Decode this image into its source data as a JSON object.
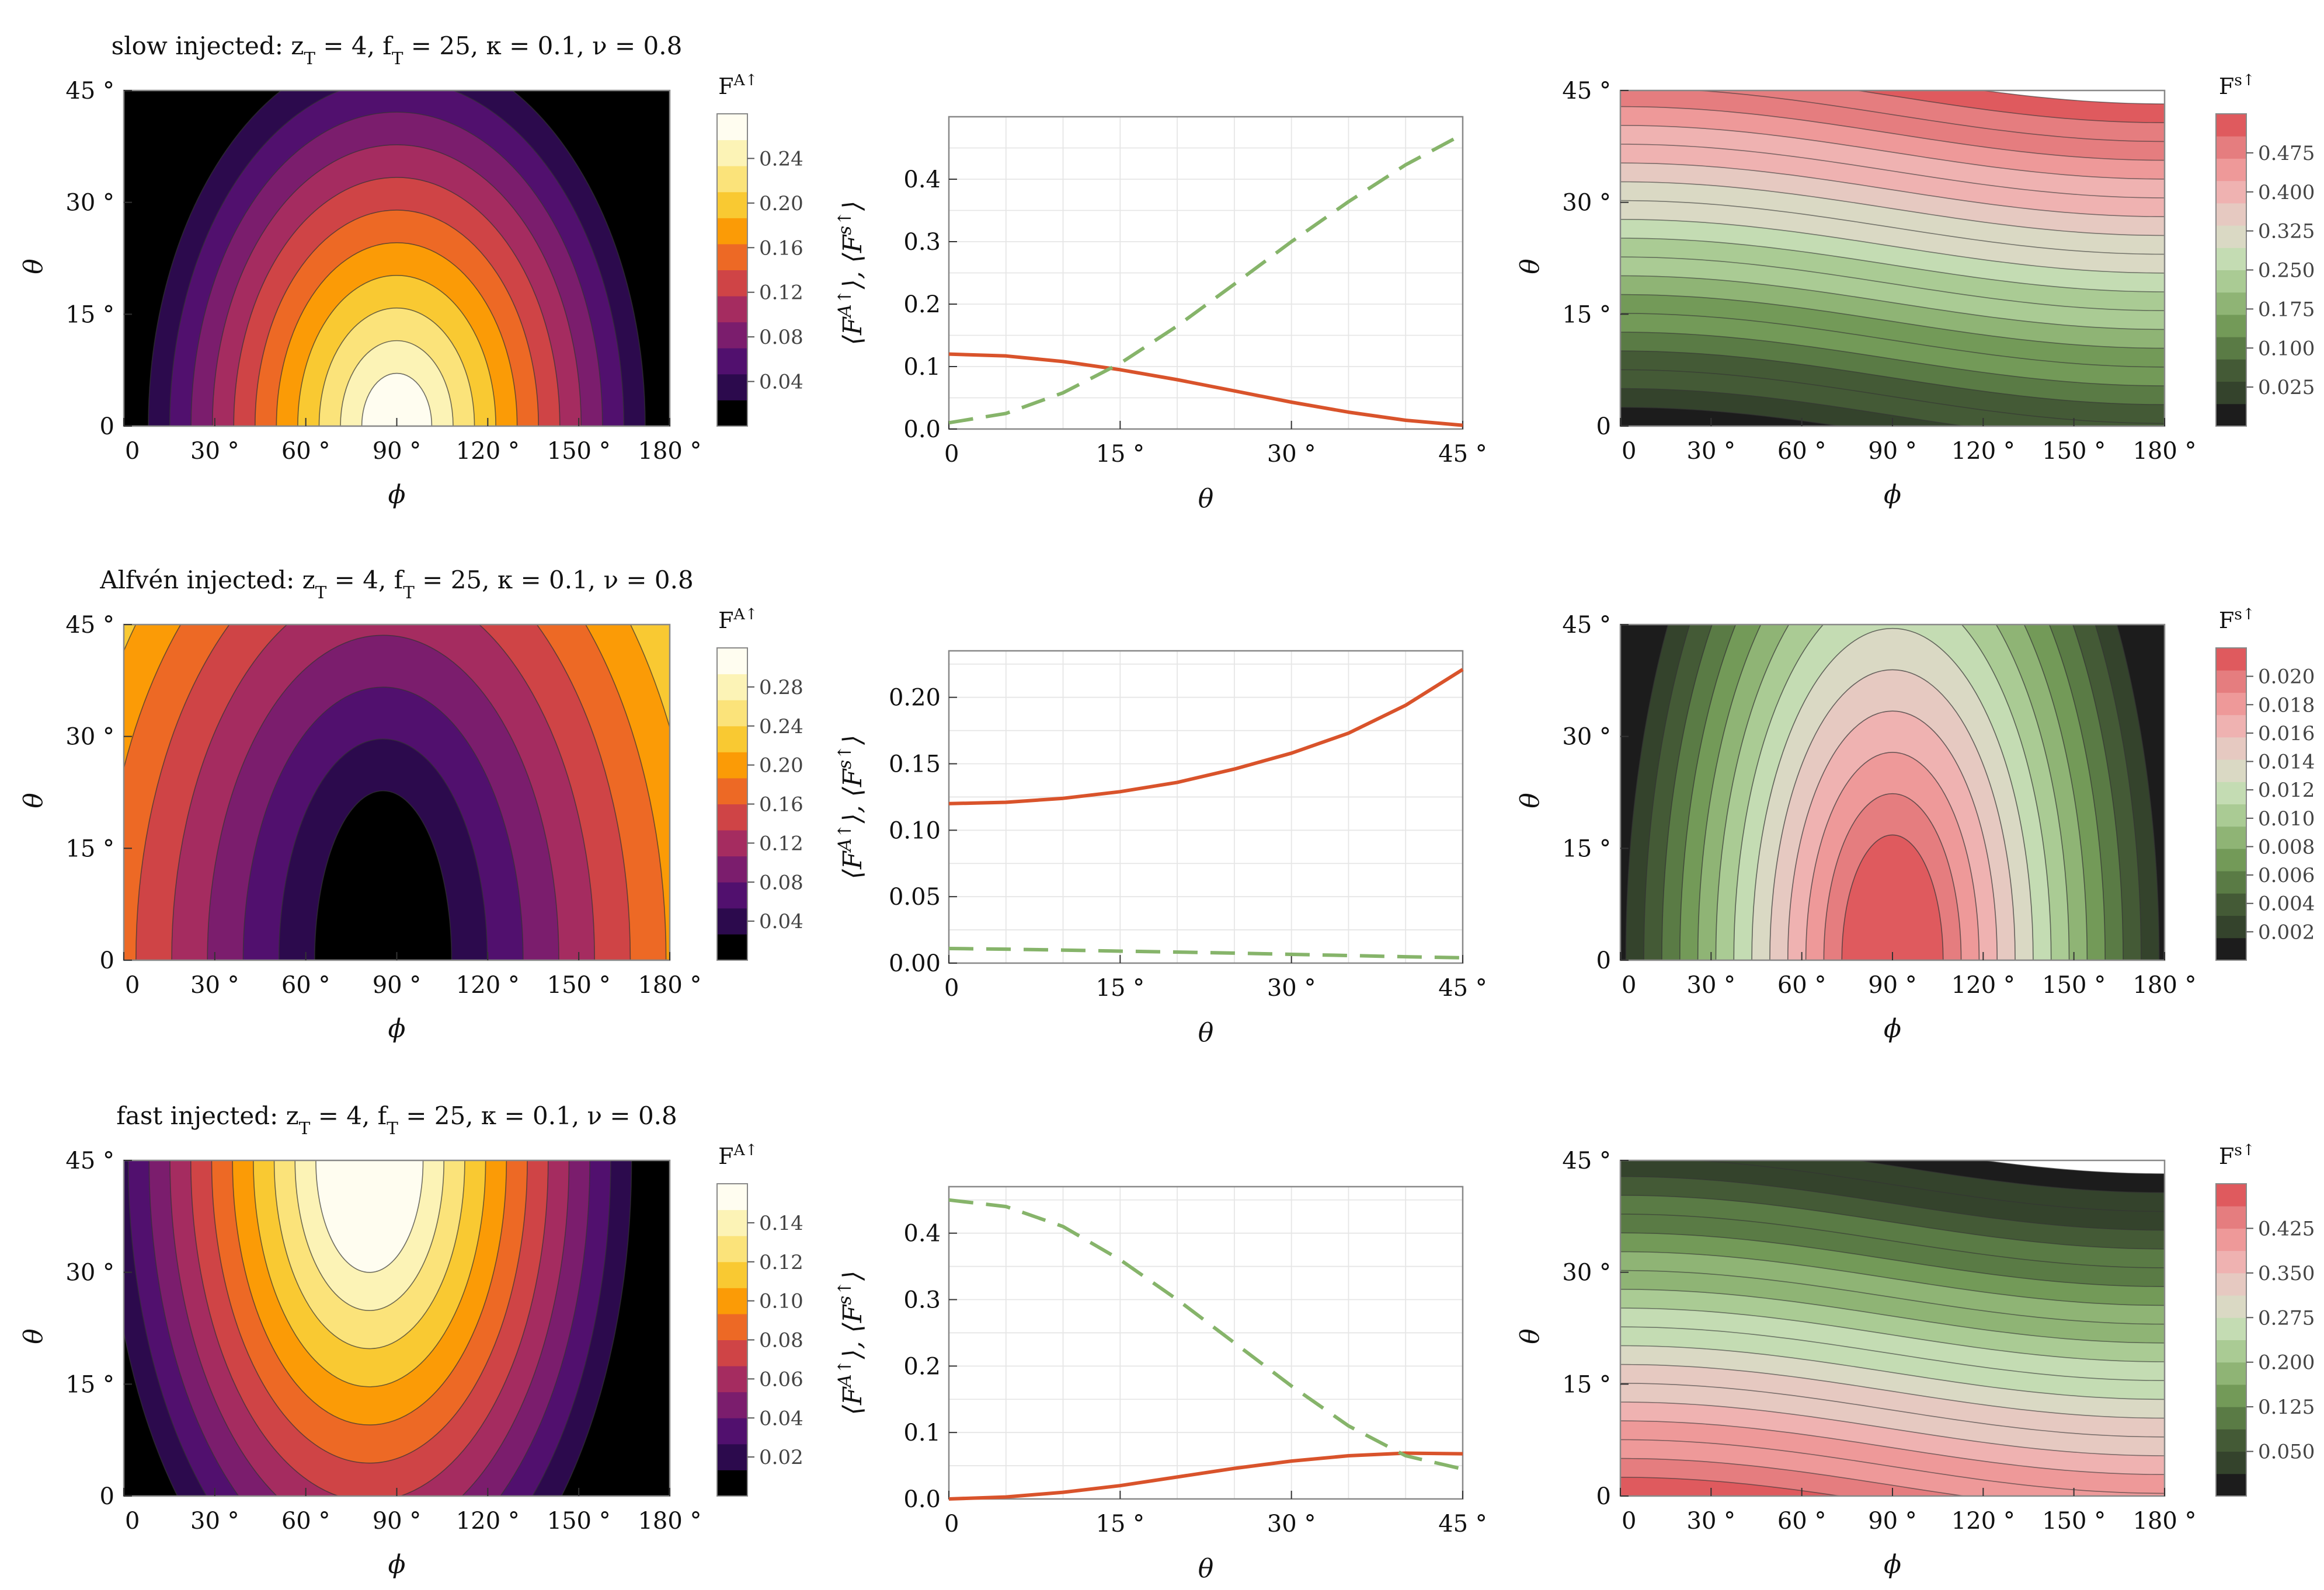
{
  "figure": {
    "rows": [
      {
        "title": "slow injected:  z_T = 4,  f_T = 25,  κ = 0.1,  ν = 0.8",
        "left": {
          "colorbar_title": "F^{A↑}",
          "palette": "inferno",
          "colorbar_ticks": [
            "0.04",
            "0.08",
            "0.12",
            "0.16",
            "0.20",
            "0.24"
          ],
          "xlabel": "ϕ",
          "ylabel": "θ",
          "xticks": [
            "0",
            "30 °",
            "60 °",
            "90 °",
            "120 °",
            "150 °",
            "180 °"
          ],
          "yticks": [
            "0",
            "15 °",
            "30 °",
            "45 °"
          ],
          "pattern": "dome_bottom"
        },
        "middle": {
          "xlabel": "θ",
          "ylabel": "⟨F^{A↑}⟩,  ⟨F^{s↑}⟩",
          "xticks": [
            "0",
            "15 °",
            "30 °",
            "45 °"
          ],
          "yticks": [
            "0.0",
            "0.1",
            "0.2",
            "0.3",
            "0.4"
          ],
          "ymax": 0.5
        },
        "right": {
          "colorbar_title": "F^{s↑}",
          "palette": "pinkgreen",
          "colorbar_ticks": [
            "0.025",
            "0.100",
            "0.175",
            "0.250",
            "0.325",
            "0.400",
            "0.475"
          ],
          "xlabel": "ϕ",
          "ylabel": "θ",
          "xticks": [
            "0",
            "30 °",
            "60 °",
            "90 °",
            "120 °",
            "150 °",
            "180 °"
          ],
          "yticks": [
            "0",
            "15 °",
            "30 °",
            "45 °"
          ],
          "pattern": "bands_up"
        }
      },
      {
        "title": "Alfvén injected:  z_T = 4,  f_T = 25,  κ = 0.1,  ν = 0.8",
        "left": {
          "colorbar_title": "F^{A↑}",
          "palette": "inferno",
          "colorbar_ticks": [
            "0.04",
            "0.08",
            "0.12",
            "0.16",
            "0.20",
            "0.24",
            "0.28"
          ],
          "xlabel": "ϕ",
          "ylabel": "θ",
          "xticks": [
            "0",
            "30 °",
            "60 °",
            "90 °",
            "120 °",
            "150 °",
            "180 °"
          ],
          "yticks": [
            "0",
            "15 °",
            "30 °",
            "45 °"
          ],
          "pattern": "dome_inverse"
        },
        "middle": {
          "xlabel": "θ",
          "ylabel": "⟨F^{A↑}⟩,  ⟨F^{s↑}⟩",
          "xticks": [
            "0",
            "15 °",
            "30 °",
            "45 °"
          ],
          "yticks": [
            "0.00",
            "0.05",
            "0.10",
            "0.15",
            "0.20"
          ],
          "ymax": 0.235
        },
        "right": {
          "colorbar_title": "F^{s↑}",
          "palette": "pinkgreen",
          "colorbar_ticks": [
            "0.002",
            "0.004",
            "0.006",
            "0.008",
            "0.010",
            "0.012",
            "0.014",
            "0.016",
            "0.018",
            "0.020"
          ],
          "xlabel": "ϕ",
          "ylabel": "θ",
          "xticks": [
            "0",
            "30 °",
            "60 °",
            "90 °",
            "120 °",
            "150 °",
            "180 °"
          ],
          "yticks": [
            "0",
            "15 °",
            "30 °",
            "45 °"
          ],
          "pattern": "dome_full"
        }
      },
      {
        "title": "fast injected:  z_T = 4,  f_T = 25,  κ = 0.1,  ν = 0.8",
        "left": {
          "colorbar_title": "F^{A↑}",
          "palette": "inferno",
          "colorbar_ticks": [
            "0.02",
            "0.04",
            "0.06",
            "0.08",
            "0.10",
            "0.12",
            "0.14"
          ],
          "xlabel": "ϕ",
          "ylabel": "θ",
          "xticks": [
            "0",
            "30 °",
            "60 °",
            "90 °",
            "120 °",
            "150 °",
            "180 °"
          ],
          "yticks": [
            "0",
            "15 °",
            "30 °",
            "45 °"
          ],
          "pattern": "dome_top"
        },
        "middle": {
          "xlabel": "θ",
          "ylabel": "⟨F^{A↑}⟩,  ⟨F^{s↑}⟩",
          "xticks": [
            "0",
            "15 °",
            "30 °",
            "45 °"
          ],
          "yticks": [
            "0.0",
            "0.1",
            "0.2",
            "0.3",
            "0.4"
          ],
          "ymax": 0.47
        },
        "right": {
          "colorbar_title": "F^{s↑}",
          "palette": "pinkgreen",
          "colorbar_ticks": [
            "0.050",
            "0.125",
            "0.200",
            "0.275",
            "0.350",
            "0.425"
          ],
          "xlabel": "ϕ",
          "ylabel": "θ",
          "xticks": [
            "0",
            "30 °",
            "60 °",
            "90 °",
            "120 °",
            "150 °",
            "180 °"
          ],
          "yticks": [
            "0",
            "15 °",
            "30 °",
            "45 °"
          ],
          "pattern": "bands_down"
        }
      }
    ]
  },
  "colors": {
    "alfven_line": "#d9532b",
    "slow_line": "#86b46a",
    "frame": "#888888",
    "grid": "#e6e6e6",
    "inferno": [
      "#000000",
      "#2c0a4d",
      "#51106e",
      "#7b1d6d",
      "#a52c60",
      "#cf4446",
      "#ed6925",
      "#fb9b06",
      "#f9c932",
      "#fbe37a",
      "#fcf3b6",
      "#fffdf0"
    ],
    "pinkgreen": [
      "#1c1c1c",
      "#34432c",
      "#445a36",
      "#5a7b45",
      "#739a58",
      "#8fb475",
      "#aacb94",
      "#c4dcb3",
      "#dad9c4",
      "#e6c9c1",
      "#efb2b1",
      "#ee9999",
      "#e57d7f",
      "#df5a5e"
    ]
  },
  "chart_data": [
    {
      "type": "heatmap",
      "title": "slow injected:  z_T = 4,  f_T = 25,  κ = 0.1,  ν = 0.8",
      "variable": "F^{A↑}",
      "xlabel": "ϕ",
      "ylabel": "θ",
      "xlim": [
        0,
        180
      ],
      "ylim": [
        0,
        45
      ],
      "colorbar_range": [
        0,
        0.26
      ]
    },
    {
      "type": "line",
      "xlabel": "θ",
      "ylabel": "⟨F^{A↑}⟩,  ⟨F^{s↑}⟩",
      "xlim": [
        0,
        45
      ],
      "ylim": [
        0,
        0.5
      ],
      "x": [
        0,
        5,
        10,
        15,
        20,
        25,
        30,
        35,
        40,
        45
      ],
      "series": [
        {
          "name": "⟨F^{A↑}⟩",
          "style": "solid",
          "values": [
            0.12,
            0.117,
            0.108,
            0.095,
            0.079,
            0.061,
            0.043,
            0.027,
            0.014,
            0.006
          ]
        },
        {
          "name": "⟨F^{s↑}⟩",
          "style": "dashed",
          "values": [
            0.01,
            0.025,
            0.058,
            0.105,
            0.165,
            0.232,
            0.3,
            0.364,
            0.423,
            0.472
          ]
        }
      ]
    },
    {
      "type": "heatmap",
      "variable": "F^{s↑}",
      "xlabel": "ϕ",
      "ylabel": "θ",
      "xlim": [
        0,
        180
      ],
      "ylim": [
        0,
        45
      ],
      "colorbar_range": [
        0,
        0.5
      ]
    },
    {
      "type": "heatmap",
      "title": "Alfvén injected:  z_T = 4,  f_T = 25,  κ = 0.1,  ν = 0.8",
      "variable": "F^{A↑}",
      "xlabel": "ϕ",
      "ylabel": "θ",
      "xlim": [
        0,
        180
      ],
      "ylim": [
        0,
        45
      ],
      "colorbar_range": [
        0,
        0.3
      ]
    },
    {
      "type": "line",
      "xlabel": "θ",
      "ylabel": "⟨F^{A↑}⟩,  ⟨F^{s↑}⟩",
      "xlim": [
        0,
        45
      ],
      "ylim": [
        0,
        0.235
      ],
      "x": [
        0,
        5,
        10,
        15,
        20,
        25,
        30,
        35,
        40,
        45
      ],
      "series": [
        {
          "name": "⟨F^{A↑}⟩",
          "style": "solid",
          "values": [
            0.12,
            0.121,
            0.124,
            0.129,
            0.136,
            0.146,
            0.158,
            0.173,
            0.194,
            0.221
          ]
        },
        {
          "name": "⟨F^{s↑}⟩",
          "style": "dashed",
          "values": [
            0.011,
            0.0105,
            0.0098,
            0.009,
            0.0083,
            0.0075,
            0.0066,
            0.0057,
            0.0048,
            0.004
          ]
        }
      ]
    },
    {
      "type": "heatmap",
      "variable": "F^{s↑}",
      "xlabel": "ϕ",
      "ylabel": "θ",
      "xlim": [
        0,
        180
      ],
      "ylim": [
        0,
        45
      ],
      "colorbar_range": [
        0,
        0.022
      ]
    },
    {
      "type": "heatmap",
      "title": "fast injected:  z_T = 4,  f_T = 25,  κ = 0.1,  ν = 0.8",
      "variable": "F^{A↑}",
      "xlabel": "ϕ",
      "ylabel": "θ",
      "xlim": [
        0,
        180
      ],
      "ylim": [
        0,
        45
      ],
      "colorbar_range": [
        0,
        0.15
      ]
    },
    {
      "type": "line",
      "xlabel": "θ",
      "ylabel": "⟨F^{A↑}⟩,  ⟨F^{s↑}⟩",
      "xlim": [
        0,
        45
      ],
      "ylim": [
        0,
        0.47
      ],
      "x": [
        0,
        5,
        10,
        15,
        20,
        25,
        30,
        35,
        40,
        45
      ],
      "series": [
        {
          "name": "⟨F^{A↑}⟩",
          "style": "solid",
          "values": [
            0.0,
            0.003,
            0.01,
            0.02,
            0.033,
            0.046,
            0.057,
            0.065,
            0.069,
            0.068
          ]
        },
        {
          "name": "⟨F^{s↑}⟩",
          "style": "dashed",
          "values": [
            0.45,
            0.44,
            0.41,
            0.36,
            0.3,
            0.235,
            0.17,
            0.11,
            0.065,
            0.045
          ]
        }
      ]
    },
    {
      "type": "heatmap",
      "variable": "F^{s↑}",
      "xlabel": "ϕ",
      "ylabel": "θ",
      "xlim": [
        0,
        180
      ],
      "ylim": [
        0,
        45
      ],
      "colorbar_range": [
        0,
        0.47
      ]
    }
  ]
}
